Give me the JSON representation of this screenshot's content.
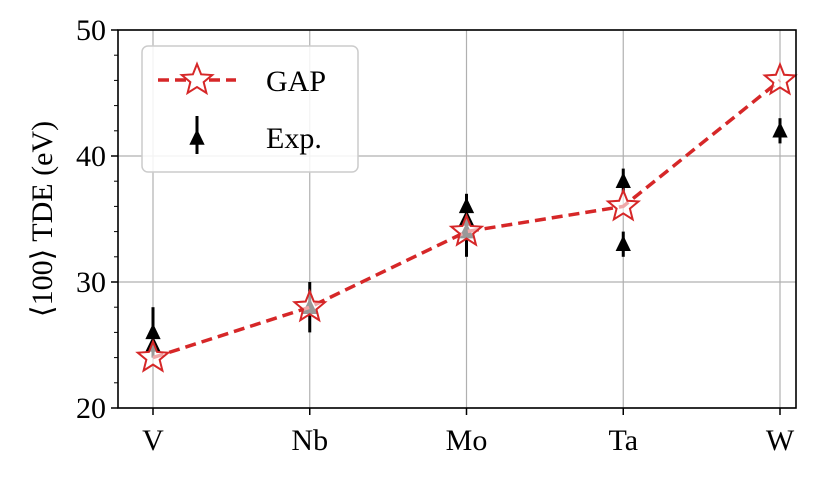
{
  "chart_data": {
    "type": "line",
    "categories": [
      "V",
      "Nb",
      "Mo",
      "Ta",
      "W"
    ],
    "ylabel": "⟨100⟩ TDE (eV)",
    "ylim": [
      20,
      50
    ],
    "yticks": [
      20,
      30,
      40,
      50
    ],
    "grid": true,
    "legend_position": "top-left",
    "series": [
      {
        "name": "GAP",
        "style": "dashed-line-star-markers",
        "color": "#d62728",
        "values": [
          24,
          28,
          34,
          36,
          46
        ]
      },
      {
        "name": "Exp.",
        "style": "triangle-markers-with-errorbars",
        "color": "#000000",
        "points": [
          {
            "category": "V",
            "y": 26,
            "err_low": 1,
            "err_high": 2
          },
          {
            "category": "V",
            "y": 25,
            "err_low": 1,
            "err_high": 1
          },
          {
            "category": "Nb",
            "y": 28,
            "err_low": 2,
            "err_high": 2
          },
          {
            "category": "Mo",
            "y": 36,
            "err_low": 1,
            "err_high": 1
          },
          {
            "category": "Mo",
            "y": 35,
            "err_low": 1,
            "err_high": 1
          },
          {
            "category": "Mo",
            "y": 34,
            "err_low": 2,
            "err_high": 1
          },
          {
            "category": "Ta",
            "y": 38,
            "err_low": 1,
            "err_high": 1
          },
          {
            "category": "Ta",
            "y": 33,
            "err_low": 1,
            "err_high": 1
          },
          {
            "category": "W",
            "y": 42,
            "err_low": 1,
            "err_high": 1
          }
        ]
      }
    ]
  }
}
